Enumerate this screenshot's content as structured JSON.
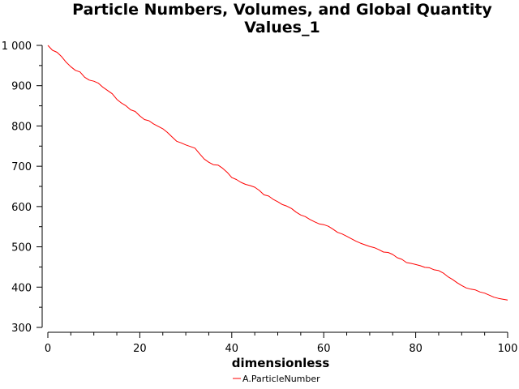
{
  "chart_data": {
    "type": "line",
    "title_lines": [
      "Particle Numbers, Volumes, and Global Quantity",
      "Values_1"
    ],
    "xlabel": "dimensionless",
    "ylabel": "",
    "xlim": [
      0,
      100
    ],
    "ylim": [
      300,
      1000
    ],
    "x_ticks": [
      0,
      20,
      40,
      60,
      80,
      100
    ],
    "x_tick_labels": [
      "0",
      "20",
      "40",
      "60",
      "80",
      "100"
    ],
    "y_ticks": [
      300,
      400,
      500,
      600,
      700,
      800,
      900,
      1000
    ],
    "y_tick_labels": [
      "300",
      "400",
      "500",
      "600",
      "700",
      "800",
      "900",
      "1 000"
    ],
    "grid": false,
    "legend_position": "bottom",
    "series": [
      {
        "name": "A.ParticleNumber",
        "color": "#ff0000",
        "x": [
          0,
          1,
          2,
          3,
          4,
          5,
          6,
          7,
          8,
          9,
          10,
          11,
          12,
          13,
          14,
          15,
          16,
          17,
          18,
          19,
          20,
          21,
          22,
          23,
          24,
          25,
          26,
          27,
          28,
          29,
          30,
          31,
          32,
          33,
          34,
          35,
          36,
          37,
          38,
          39,
          40,
          41,
          42,
          43,
          44,
          45,
          46,
          47,
          48,
          49,
          50,
          51,
          52,
          53,
          54,
          55,
          56,
          57,
          58,
          59,
          60,
          61,
          62,
          63,
          64,
          65,
          66,
          67,
          68,
          69,
          70,
          71,
          72,
          73,
          74,
          75,
          76,
          77,
          78,
          79,
          80,
          81,
          82,
          83,
          84,
          85,
          86,
          87,
          88,
          89,
          90,
          91,
          92,
          93,
          94,
          95,
          96,
          97,
          98,
          99,
          100
        ],
        "values": [
          1000,
          988,
          983,
          972,
          958,
          947,
          938,
          934,
          921,
          914,
          911,
          906,
          896,
          888,
          880,
          866,
          857,
          850,
          840,
          836,
          825,
          816,
          813,
          805,
          799,
          793,
          784,
          773,
          762,
          758,
          753,
          749,
          745,
          731,
          718,
          710,
          704,
          703,
          695,
          685,
          672,
          667,
          660,
          655,
          652,
          648,
          640,
          629,
          626,
          618,
          612,
          605,
          601,
          595,
          586,
          579,
          575,
          568,
          562,
          557,
          555,
          551,
          544,
          536,
          532,
          526,
          520,
          514,
          509,
          505,
          501,
          498,
          493,
          487,
          486,
          481,
          473,
          469,
          461,
          459,
          456,
          453,
          449,
          448,
          443,
          441,
          435,
          426,
          419,
          411,
          404,
          398,
          395,
          393,
          388,
          385,
          380,
          375,
          372,
          370,
          368
        ]
      }
    ]
  }
}
